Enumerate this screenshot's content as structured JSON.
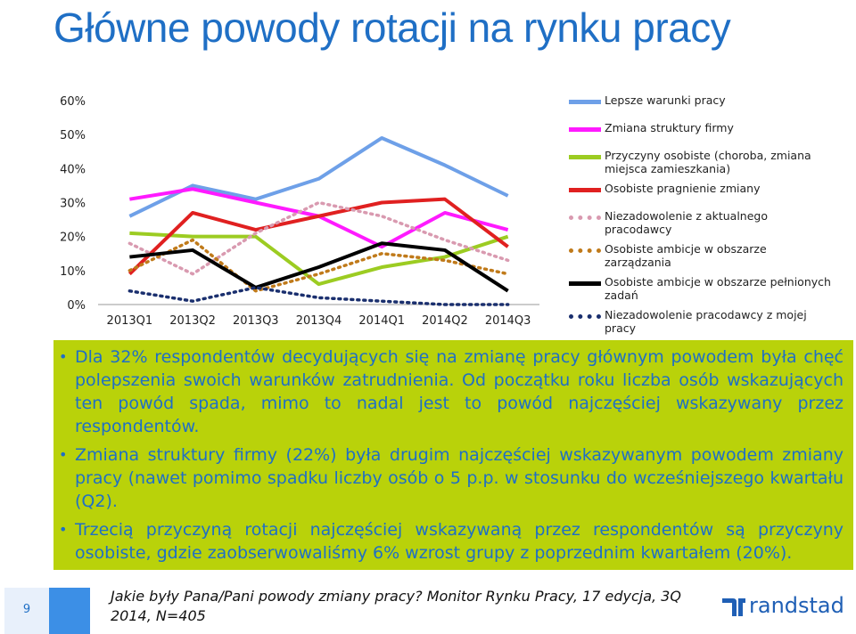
{
  "title": "Główne powody rotacji na rynku pracy",
  "chart_data": {
    "type": "line",
    "categories": [
      "2013Q1",
      "2013Q2",
      "2013Q3",
      "2013Q4",
      "2014Q1",
      "2014Q2",
      "2014Q3"
    ],
    "yticks": [
      "0%",
      "10%",
      "20%",
      "30%",
      "40%",
      "50%",
      "60%"
    ],
    "ylim": [
      0,
      60
    ],
    "series": [
      {
        "name": "Lepsze warunki pracy",
        "color": "#6ea0e8",
        "dash": "solid",
        "values": [
          26,
          35,
          31,
          37,
          49,
          41,
          32
        ]
      },
      {
        "name": "Zmiana struktury firmy",
        "color": "#ff1aff",
        "dash": "solid",
        "values": [
          31,
          34,
          30,
          26,
          17,
          27,
          22
        ]
      },
      {
        "name": "Przyczyny osobiste (choroba, zmiana miejsca zamieszkania)",
        "color": "#9ccc22",
        "dash": "solid",
        "values": [
          21,
          20,
          20,
          6,
          11,
          14,
          20
        ]
      },
      {
        "name": "Osobiste pragnienie zmiany",
        "color": "#e02020",
        "dash": "solid",
        "values": [
          9,
          27,
          22,
          26,
          30,
          31,
          17
        ]
      },
      {
        "name": "Niezadowolenie z aktualnego pracodawcy",
        "color": "#d99ab0",
        "dash": "dot",
        "values": [
          18,
          9,
          21,
          30,
          26,
          19,
          13
        ]
      },
      {
        "name": "Osobiste ambicje w obszarze zarządzania",
        "color": "#c07a1a",
        "dash": "dot",
        "values": [
          10,
          19,
          4,
          9,
          15,
          13,
          9
        ]
      },
      {
        "name": "Osobiste ambicje w obszarze pełnionych zadań",
        "color": "#000000",
        "dash": "solid",
        "values": [
          14,
          16,
          5,
          11,
          18,
          16,
          4
        ]
      },
      {
        "name": "Niezadowolenie pracodawcy z mojej pracy",
        "color": "#1a2f6e",
        "dash": "dot",
        "values": [
          4,
          1,
          5,
          2,
          1,
          0,
          0
        ]
      }
    ]
  },
  "bullets": [
    "Dla 32% respondentów decydujących się na zmianę pracy głównym powodem była chęć polepszenia swoich warunków zatrudnienia. Od początku roku liczba osób wskazujących ten powód spada, mimo to nadal jest to powód najczęściej wskazywany przez respondentów.",
    "Zmiana struktury firmy (22%) była drugim najczęściej wskazywanym powodem zmiany pracy (nawet pomimo spadku liczby osób o 5 p.p. w stosunku do wcześniejszego kwartału (Q2).",
    "Trzecią przyczyną rotacji najczęściej wskazywaną przez respondentów są przyczyny osobiste, gdzie zaobserwowaliśmy 6% wzrost grupy z poprzednim kwartałem (20%)."
  ],
  "footer": {
    "page_number": "9",
    "source": "Jakie były Pana/Pani powody zmiany pracy? Monitor Rynku Pracy, 17 edycja, 3Q 2014, N=405",
    "logo_text": "randstad"
  }
}
